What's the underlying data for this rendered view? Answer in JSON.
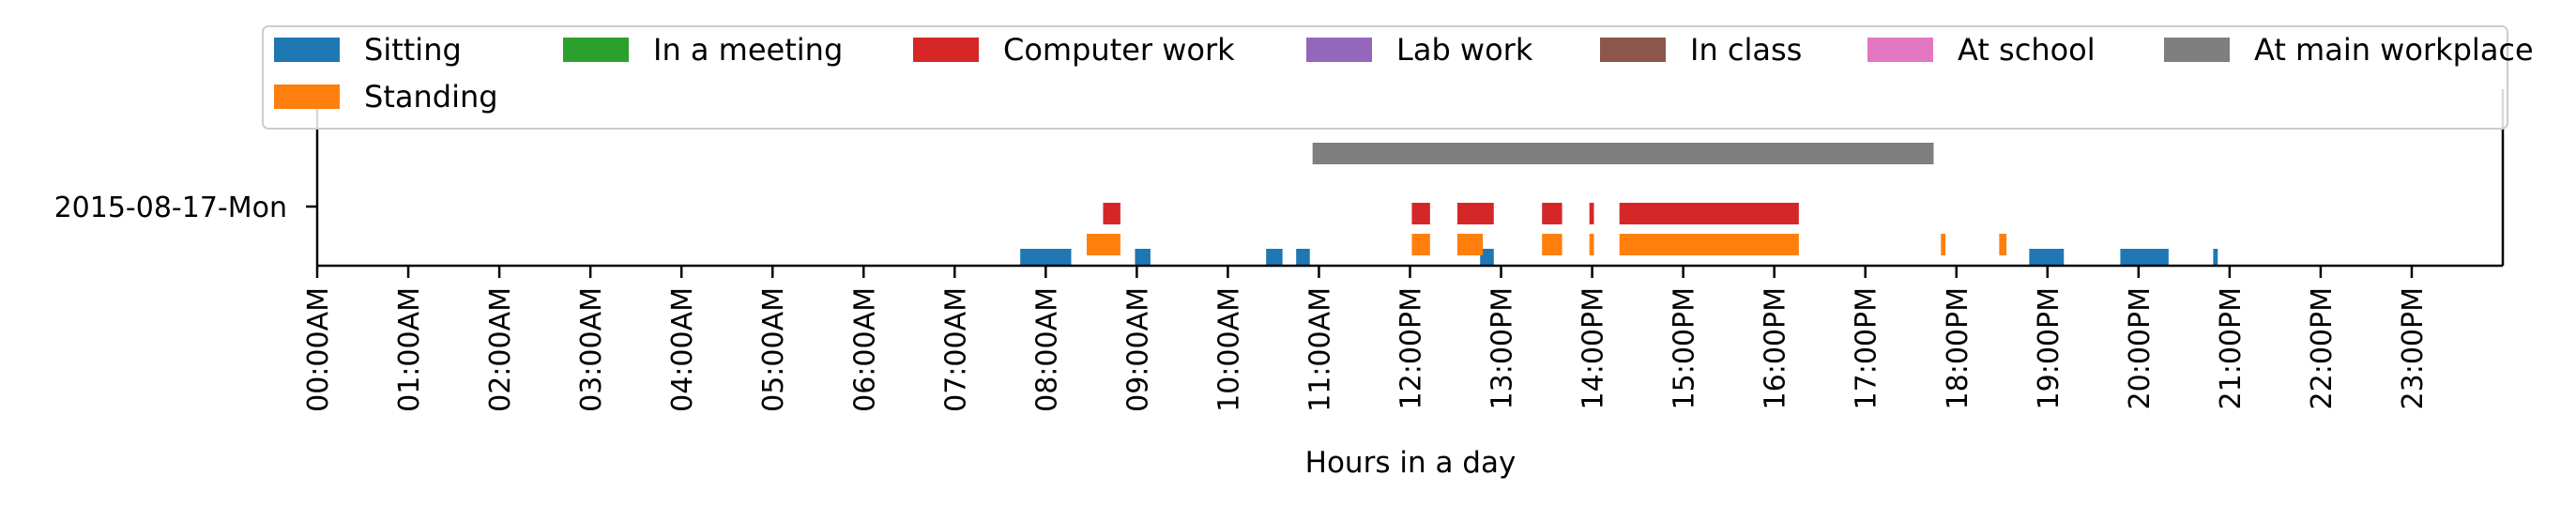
{
  "chart_data": {
    "type": "timeline",
    "xlabel": "Hours in a day",
    "ylabel": "",
    "y_categories": [
      "2015-08-17-Mon"
    ],
    "x_range_hours": [
      0,
      24
    ],
    "x_ticks": [
      "00:00AM",
      "01:00AM",
      "02:00AM",
      "03:00AM",
      "04:00AM",
      "05:00AM",
      "06:00AM",
      "07:00AM",
      "08:00AM",
      "09:00AM",
      "10:00AM",
      "11:00AM",
      "12:00PM",
      "13:00PM",
      "14:00PM",
      "15:00PM",
      "16:00PM",
      "17:00PM",
      "18:00PM",
      "19:00PM",
      "20:00PM",
      "21:00PM",
      "22:00PM",
      "23:00PM"
    ],
    "grid": false,
    "legend_placement": "top",
    "legend_order": [
      "Sitting",
      "In a meeting",
      "Computer work",
      "Lab work",
      "In class",
      "At school",
      "At main workplace",
      "Standing"
    ],
    "series": [
      {
        "name": "Sitting",
        "color": "#1f77b4",
        "intervals": [
          [
            7.72,
            8.28
          ],
          [
            8.98,
            9.15
          ],
          [
            10.42,
            10.6
          ],
          [
            10.75,
            10.9
          ],
          [
            12.77,
            12.92
          ],
          [
            18.8,
            19.18
          ],
          [
            19.8,
            20.33
          ],
          [
            20.82,
            20.87
          ]
        ]
      },
      {
        "name": "Standing",
        "color": "#ff7f0e",
        "intervals": [
          [
            8.45,
            8.82
          ],
          [
            12.02,
            12.22
          ],
          [
            12.52,
            12.8
          ],
          [
            13.45,
            13.67
          ],
          [
            13.97,
            14.02
          ],
          [
            14.3,
            16.27
          ],
          [
            17.83,
            17.88
          ],
          [
            18.47,
            18.55
          ]
        ]
      },
      {
        "name": "In a meeting",
        "color": "#2ca02c",
        "intervals": []
      },
      {
        "name": "Computer work",
        "color": "#d62728",
        "intervals": [
          [
            8.63,
            8.82
          ],
          [
            12.02,
            12.22
          ],
          [
            12.52,
            12.92
          ],
          [
            13.45,
            13.67
          ],
          [
            13.97,
            14.02
          ],
          [
            14.3,
            16.27
          ]
        ]
      },
      {
        "name": "Lab work",
        "color": "#9467bd",
        "intervals": []
      },
      {
        "name": "In class",
        "color": "#8c564b",
        "intervals": []
      },
      {
        "name": "At school",
        "color": "#e377c2",
        "intervals": []
      },
      {
        "name": "At main workplace",
        "color": "#7f7f7f",
        "intervals": [
          [
            10.93,
            17.75
          ]
        ]
      }
    ]
  }
}
